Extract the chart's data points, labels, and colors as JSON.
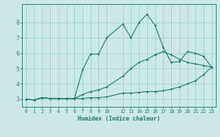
{
  "xlabel": "Humidex (Indice chaleur)",
  "bg_color": "#cce8e8",
  "grid_color": "#99cccc",
  "line_color": "#1a7a6e",
  "xlim": [
    -0.5,
    23.5
  ],
  "ylim": [
    2.5,
    9.2
  ],
  "yticks": [
    3,
    4,
    5,
    6,
    7,
    8
  ],
  "xticks": [
    0,
    1,
    2,
    3,
    4,
    5,
    6,
    7,
    8,
    9,
    10,
    12,
    13,
    14,
    15,
    16,
    17,
    18,
    19,
    20,
    21,
    22,
    23
  ],
  "line1_x": [
    0,
    1,
    2,
    3,
    4,
    5,
    6,
    7,
    8,
    9,
    10,
    12,
    13,
    14,
    15,
    16,
    17,
    18,
    19,
    20,
    21,
    22,
    23
  ],
  "line1_y": [
    3.0,
    2.95,
    3.1,
    3.05,
    3.05,
    3.05,
    3.05,
    3.05,
    3.1,
    3.1,
    3.15,
    3.4,
    3.4,
    3.45,
    3.5,
    3.5,
    3.55,
    3.65,
    3.8,
    4.0,
    4.2,
    4.6,
    5.1
  ],
  "line2_x": [
    0,
    1,
    2,
    3,
    4,
    5,
    6,
    7,
    8,
    9,
    10,
    12,
    13,
    14,
    15,
    16,
    17,
    18,
    19,
    20,
    21,
    22,
    23
  ],
  "line2_y": [
    3.0,
    2.95,
    3.1,
    3.05,
    3.05,
    3.05,
    3.05,
    3.3,
    3.5,
    3.6,
    3.8,
    4.5,
    5.0,
    5.4,
    5.6,
    5.9,
    6.1,
    5.9,
    5.6,
    5.4,
    5.3,
    5.2,
    5.1
  ],
  "line3_x": [
    0,
    1,
    2,
    3,
    4,
    5,
    6,
    7,
    8,
    9,
    10,
    12,
    13,
    14,
    15,
    16,
    17,
    18,
    19,
    20,
    21,
    22,
    23
  ],
  "line3_y": [
    3.0,
    2.95,
    3.1,
    3.05,
    3.05,
    3.05,
    3.05,
    4.9,
    5.95,
    5.95,
    7.0,
    7.9,
    7.0,
    8.0,
    8.55,
    7.8,
    6.4,
    5.4,
    5.45,
    6.1,
    6.0,
    5.8,
    5.1
  ]
}
